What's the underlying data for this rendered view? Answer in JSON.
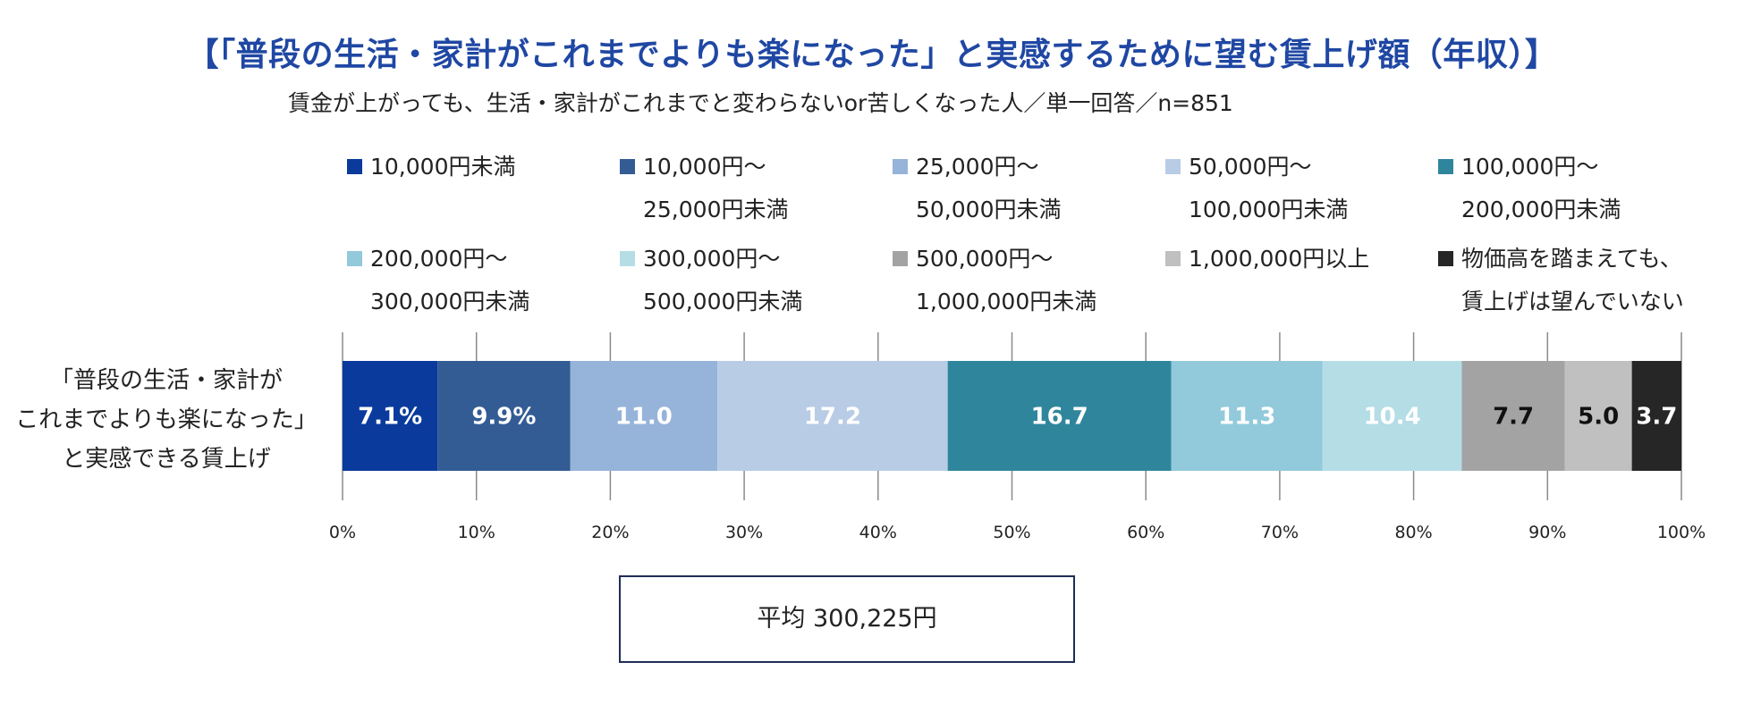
{
  "chart_data": {
    "type": "bar",
    "orientation": "horizontal-stacked-100",
    "title": "【「普段の生活・家計がこれまでよりも楽になった」と実感するために望む賃上げ額（年収）】",
    "subtitle": "賃金が上がっても、生活・家計がこれまでと変わらないor苦しくなった人／単一回答／n=851",
    "category_label_lines": [
      "「普段の生活・家計が",
      "これまでよりも楽になった」",
      "と実感できる賃上げ"
    ],
    "xlim": [
      0,
      100
    ],
    "x_ticks": [
      "0%",
      "10%",
      "20%",
      "30%",
      "40%",
      "50%",
      "60%",
      "70%",
      "80%",
      "90%",
      "100%"
    ],
    "legend_position": "top",
    "series": [
      {
        "name": "10,000円未満",
        "legend_lines": [
          "10,000円未満"
        ],
        "value": 7.1,
        "label": "7.1%",
        "color": "#0a3a9c",
        "label_color": "#ffffff"
      },
      {
        "name": "10,000円～25,000円未満",
        "legend_lines": [
          "10,000円～",
          "25,000円未満"
        ],
        "value": 9.9,
        "label": "9.9%",
        "color": "#335c94",
        "label_color": "#ffffff"
      },
      {
        "name": "25,000円～50,000円未満",
        "legend_lines": [
          "25,000円～",
          "50,000円未満"
        ],
        "value": 11.0,
        "label": "11.0",
        "color": "#96b3d9",
        "label_color": "#ffffff"
      },
      {
        "name": "50,000円～100,000円未満",
        "legend_lines": [
          "50,000円～",
          "100,000円未満"
        ],
        "value": 17.2,
        "label": "17.2",
        "color": "#b8cce6",
        "label_color": "#ffffff"
      },
      {
        "name": "100,000円～200,000円未満",
        "legend_lines": [
          "100,000円～",
          "200,000円未満"
        ],
        "value": 16.7,
        "label": "16.7",
        "color": "#2f869c",
        "label_color": "#ffffff"
      },
      {
        "name": "200,000円～300,000円未満",
        "legend_lines": [
          "200,000円～",
          "300,000円未満"
        ],
        "value": 11.3,
        "label": "11.3",
        "color": "#92cadb",
        "label_color": "#ffffff"
      },
      {
        "name": "300,000円～500,000円未満",
        "legend_lines": [
          "300,000円～",
          "500,000円未満"
        ],
        "value": 10.4,
        "label": "10.4",
        "color": "#b5dde6",
        "label_color": "#ffffff"
      },
      {
        "name": "500,000円～1,000,000円未満",
        "legend_lines": [
          "500,000円～",
          "1,000,000円未満"
        ],
        "value": 7.7,
        "label": "7.7",
        "color": "#a3a3a3",
        "label_color": "#111111"
      },
      {
        "name": "1,000,000円以上",
        "legend_lines": [
          "1,000,000円以上"
        ],
        "value": 5.0,
        "label": "5.0",
        "color": "#c0c0c0",
        "label_color": "#111111"
      },
      {
        "name": "物価高を踏まえても、賃上げは望んでいない",
        "legend_lines": [
          "物価高を踏まえても、",
          "賃上げは望んでいない"
        ],
        "value": 3.7,
        "label": "3.7",
        "color": "#262626",
        "label_color": "#ffffff"
      }
    ],
    "average_label": "平均 300,225円"
  }
}
